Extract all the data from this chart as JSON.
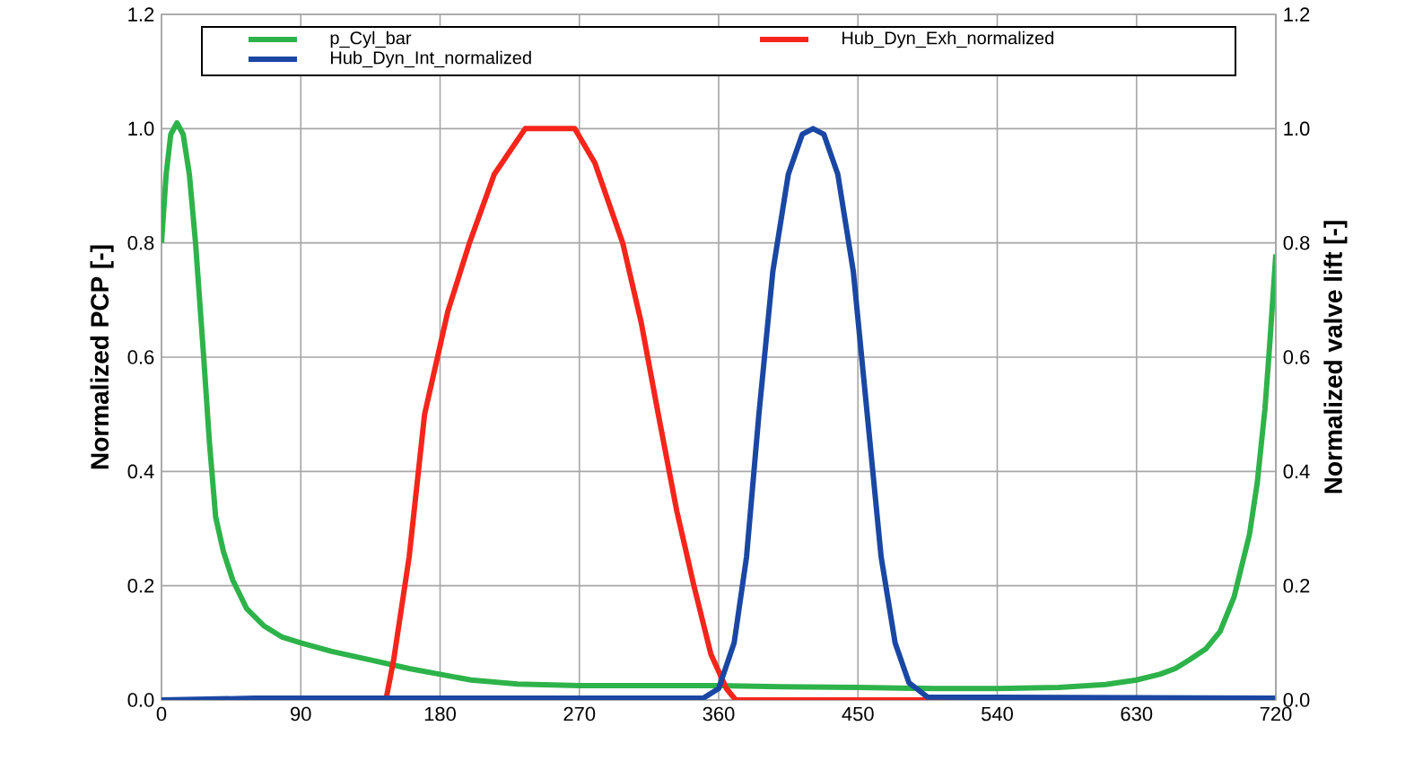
{
  "chart_data": {
    "type": "line",
    "ylabel": "Normalized PCP [-]",
    "y2label": "Normalized valve lift [-]",
    "xlim": [
      0,
      720
    ],
    "xticks": [
      0,
      90,
      180,
      270,
      360,
      450,
      540,
      630,
      720
    ],
    "ylim": [
      0,
      1.2
    ],
    "yticks": [
      {
        "value": 0,
        "label": "0.0"
      },
      {
        "value": 0.2,
        "label": "0.2"
      },
      {
        "value": 0.4,
        "label": "0.4"
      },
      {
        "value": 0.6,
        "label": "0.6"
      },
      {
        "value": 0.8,
        "label": "0.8"
      },
      {
        "value": 1.0,
        "label": "1.0"
      },
      {
        "value": 1.2,
        "label": "1.2"
      }
    ],
    "y2lim": [
      0,
      1.2
    ],
    "y2ticks": [
      {
        "value": 0,
        "label": "0.0"
      },
      {
        "value": 0.2,
        "label": "0.2"
      },
      {
        "value": 0.4,
        "label": "0.4"
      },
      {
        "value": 0.6,
        "label": "0.6"
      },
      {
        "value": 0.8,
        "label": "0.8"
      },
      {
        "value": 1.0,
        "label": "1.0"
      },
      {
        "value": 1.2,
        "label": "1.2"
      }
    ],
    "grid": true,
    "legend": "top",
    "marker": "none",
    "line_style": "solid",
    "series": [
      {
        "name": "p_Cyl_bar",
        "color": "#2db34a",
        "x": [
          0,
          3,
          6,
          10,
          14,
          18,
          22,
          27,
          31,
          35,
          40,
          46,
          55,
          66,
          78,
          90,
          110,
          135,
          160,
          180,
          200,
          230,
          270,
          320,
          360,
          400,
          450,
          500,
          540,
          580,
          610,
          630,
          645,
          655,
          664,
          675,
          684,
          693,
          703,
          708,
          713,
          716,
          719,
          720
        ],
        "values": [
          0.8,
          0.92,
          0.99,
          1.01,
          0.99,
          0.92,
          0.8,
          0.61,
          0.45,
          0.32,
          0.26,
          0.21,
          0.16,
          0.13,
          0.11,
          0.1,
          0.085,
          0.07,
          0.055,
          0.045,
          0.035,
          0.028,
          0.025,
          0.025,
          0.025,
          0.023,
          0.022,
          0.02,
          0.02,
          0.022,
          0.027,
          0.035,
          0.045,
          0.055,
          0.07,
          0.09,
          0.12,
          0.18,
          0.29,
          0.38,
          0.51,
          0.62,
          0.74,
          0.78
        ]
      },
      {
        "name": "Hub_Dyn_Exh_normalized",
        "color": "#f5251b",
        "x": [
          0,
          145,
          150,
          160,
          170,
          185,
          199,
          215,
          235,
          267,
          280,
          298,
          310,
          321,
          333,
          344,
          355,
          365,
          371,
          720
        ],
        "values": [
          0,
          0,
          0.07,
          0.25,
          0.5,
          0.68,
          0.8,
          0.92,
          1.0,
          1.0,
          0.94,
          0.8,
          0.66,
          0.5,
          0.33,
          0.2,
          0.08,
          0.02,
          0,
          0
        ]
      },
      {
        "name": "Hub_Dyn_Int_normalized",
        "color": "#1a47a3",
        "x": [
          0,
          60,
          350,
          360,
          370,
          378,
          386,
          395,
          405,
          414,
          421,
          428,
          437,
          447,
          456,
          465,
          474,
          483,
          495,
          720
        ],
        "values": [
          0,
          0.003,
          0.003,
          0.02,
          0.1,
          0.25,
          0.5,
          0.75,
          0.92,
          0.99,
          1.0,
          0.99,
          0.92,
          0.75,
          0.5,
          0.25,
          0.1,
          0.03,
          0.005,
          0.003
        ]
      }
    ]
  }
}
